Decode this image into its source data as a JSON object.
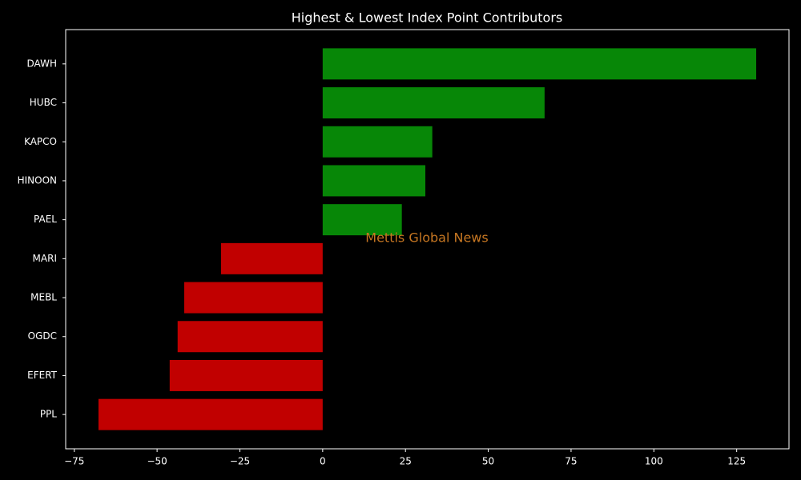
{
  "chart_data": {
    "type": "barh",
    "title": "Highest & Lowest Index Point Contributors",
    "annotation": "Mettis Global News",
    "categories": [
      "DAWH",
      "HUBC",
      "KAPCO",
      "HINOON",
      "PAEL",
      "MARI",
      "MEBL",
      "OGDC",
      "EFERT",
      "PPL"
    ],
    "values": [
      130.9,
      67.0,
      33.1,
      31.0,
      23.9,
      -30.7,
      -41.8,
      -43.8,
      -46.2,
      -67.7
    ],
    "colors": [
      "#078707",
      "#078707",
      "#078707",
      "#078707",
      "#078707",
      "#c10000",
      "#c10000",
      "#c10000",
      "#c10000",
      "#c10000"
    ],
    "xlim": [
      -77.6,
      140.8
    ],
    "xticks": [
      {
        "value": -75,
        "label": "−75"
      },
      {
        "value": -50,
        "label": "−50"
      },
      {
        "value": -25,
        "label": "−25"
      },
      0,
      25,
      50,
      75,
      100,
      125
    ],
    "grid": false
  }
}
